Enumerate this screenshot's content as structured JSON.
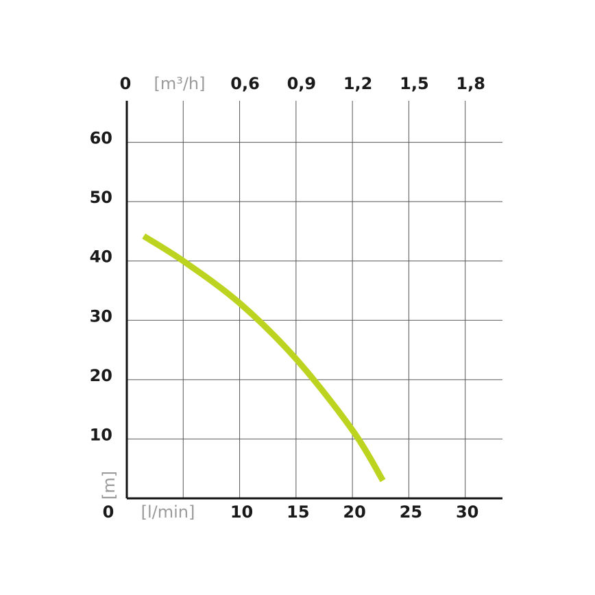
{
  "chart_data": {
    "type": "line",
    "x_unit_label": "[l/min]",
    "x_zero_label": "0",
    "x_ticks": [
      10,
      15,
      20,
      25,
      30
    ],
    "x_ticks_text": [
      "10",
      "15",
      "20",
      "25",
      "30"
    ],
    "top_unit_label": "[m³/h]",
    "top_zero_label": "0",
    "top_ticks_text": [
      "0,6",
      "0,9",
      "1,2",
      "1,5",
      "1,8"
    ],
    "y_unit_label": "[m]",
    "y_zero_label": "0",
    "y_ticks": [
      10,
      20,
      30,
      40,
      50,
      60
    ],
    "y_ticks_text": [
      "10",
      "20",
      "30",
      "40",
      "50",
      "60"
    ],
    "xlim": [
      0,
      33.3
    ],
    "ylim": [
      0,
      67
    ],
    "grid": true,
    "series": [
      {
        "color": "#bcd41f",
        "x": [
          1.5,
          5,
          10,
          15,
          20,
          22.7
        ],
        "y": [
          44.2,
          40.0,
          32.9,
          23.5,
          11.5,
          3.0
        ]
      }
    ]
  }
}
